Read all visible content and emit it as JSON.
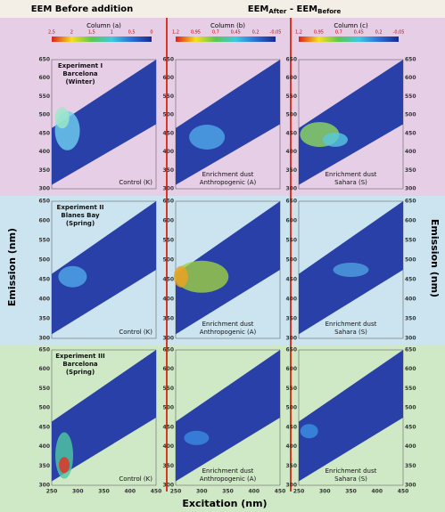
{
  "header": {
    "left_title": "EEM Before addition",
    "right_title": {
      "part1": "EEM",
      "sub1": "After",
      "part2": " - EEM",
      "sub2": "Before"
    }
  },
  "columns": [
    {
      "title": "Column (a)",
      "colorbar_labels": [
        "2,5",
        "2",
        "1,5",
        "1",
        "0,5",
        "0"
      ]
    },
    {
      "title": "Column (b)",
      "colorbar_labels": [
        "1,2",
        "0,95",
        "0,7",
        "0,45",
        "0,2",
        "-0,05"
      ]
    },
    {
      "title": "Column (c)",
      "colorbar_labels": [
        "1,2",
        "0,95",
        "0,7",
        "0,45",
        "0,2",
        "-0,05"
      ]
    }
  ],
  "rows": [
    {
      "experiment": [
        "Experiment I",
        "Barcelona",
        "(Winter)"
      ],
      "panel_labels": [
        [
          "Control (K)"
        ],
        [
          "Enrichment dust",
          "Anthropogenic (A)"
        ],
        [
          "Enrichment dust",
          "Sahara (S)"
        ]
      ]
    },
    {
      "experiment": [
        "Experiment II",
        "Blanes Bay",
        "(Spring)"
      ],
      "panel_labels": [
        [
          "Control (K)"
        ],
        [
          "Enrichment dust",
          "Anthropogenic (A)"
        ],
        [
          "Enrichment dust",
          "Sahara (S)"
        ]
      ]
    },
    {
      "experiment": [
        "Experiment III",
        "Barcelona",
        "(Spring)"
      ],
      "panel_labels": [
        [
          "Control (K)"
        ],
        [
          "Enrichment dust",
          "Anthropogenic (A)"
        ],
        [
          "Enrichment dust",
          "Sahara (S)"
        ]
      ]
    }
  ],
  "y_ticks": [
    "650",
    "600",
    "550",
    "500",
    "450",
    "400",
    "350",
    "300"
  ],
  "x_ticks": [
    "250",
    "300",
    "350",
    "400",
    "450"
  ],
  "y_axis_label": "Emission (nm)",
  "x_axis_label": "Excitation (nm)"
}
